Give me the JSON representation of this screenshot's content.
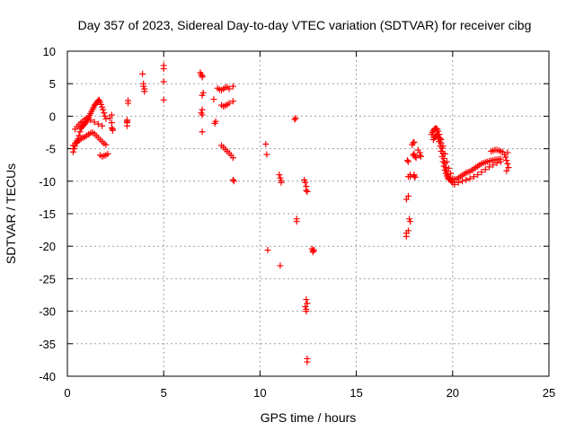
{
  "chart_data": {
    "type": "scatter",
    "title": "Day 357 of 2023, Sidereal Day-to-day VTEC variation (SDTVAR) for receiver cibg",
    "xlabel": "GPS time / hours",
    "ylabel": "SDTVAR / TECUs",
    "xlim": [
      0,
      25
    ],
    "ylim": [
      -40,
      10
    ],
    "xticks": [
      0,
      5,
      10,
      15,
      20,
      25
    ],
    "yticks": [
      -40,
      -35,
      -30,
      -25,
      -20,
      -15,
      -10,
      -5,
      0,
      5,
      10
    ],
    "grid": true,
    "marker": "+",
    "color": "#ff0000",
    "series": [
      {
        "name": "SDTVAR",
        "x": [
          0.3,
          0.35,
          0.4,
          0.45,
          0.5,
          0.55,
          0.6,
          0.65,
          0.7,
          0.75,
          0.8,
          0.85,
          0.9,
          0.95,
          1.0,
          1.05,
          1.1,
          1.15,
          1.2,
          1.25,
          1.3,
          1.35,
          1.4,
          1.45,
          1.5,
          1.55,
          1.6,
          1.65,
          1.7,
          1.75,
          1.8,
          1.85,
          1.9,
          1.95,
          2.0,
          0.3,
          0.4,
          0.5,
          0.6,
          0.7,
          0.8,
          0.9,
          1.0,
          1.1,
          1.2,
          1.3,
          1.4,
          1.5,
          1.6,
          1.7,
          1.8,
          1.9,
          2.0,
          0.4,
          0.5,
          0.6,
          0.7,
          0.8,
          0.9,
          1.0,
          1.2,
          1.4,
          1.6,
          1.8,
          1.7,
          1.8,
          1.9,
          2.0,
          2.1,
          2.2,
          2.3,
          2.3,
          2.3,
          2.35,
          2.35,
          3.1,
          3.1,
          3.1,
          3.15,
          3.15,
          3.1,
          3.9,
          3.95,
          3.95,
          4.0,
          4.0,
          5.0,
          5.0,
          5.0,
          5.0,
          6.9,
          6.95,
          7.0,
          7.0,
          7.05,
          7.0,
          7.0,
          6.95,
          7.0,
          7.0,
          7.6,
          7.7,
          7.65,
          7.8,
          7.9,
          8.0,
          8.1,
          8.2,
          8.3,
          8.4,
          8.0,
          8.1,
          8.2,
          8.3,
          8.4,
          8.0,
          8.1,
          8.2,
          8.3,
          8.4,
          8.5,
          8.6,
          8.6,
          8.6,
          8.6,
          8.65,
          10.3,
          10.35,
          10.4,
          11.0,
          11.05,
          11.1,
          11.1,
          11.05,
          11.8,
          11.85,
          11.9,
          11.9,
          12.3,
          12.35,
          12.4,
          12.4,
          12.45,
          12.4,
          12.45,
          12.35,
          12.4,
          12.4,
          12.45,
          12.45,
          12.7,
          12.75,
          12.75,
          12.8,
          17.6,
          17.6,
          17.7,
          17.7,
          17.65,
          17.7,
          17.6,
          17.7,
          17.8,
          17.8,
          17.75,
          17.8,
          17.9,
          17.95,
          18.0,
          18.0,
          17.95,
          18.05,
          18.1,
          18.0,
          18.05,
          18.0,
          18.2,
          18.3,
          18.3,
          18.35,
          18.9,
          18.95,
          19.0,
          19.05,
          19.1,
          19.15,
          19.2,
          19.25,
          19.3,
          19.35,
          19.4,
          19.45,
          19.5,
          19.55,
          19.6,
          19.65,
          19.7,
          19.75,
          19.8,
          19.85,
          19.9,
          19.95,
          20.0,
          19.0,
          19.05,
          19.1,
          19.15,
          19.2,
          19.25,
          19.3,
          19.35,
          19.4,
          19.45,
          19.5,
          19.55,
          19.6,
          19.65,
          19.7,
          19.75,
          19.8,
          19.2,
          19.3,
          19.4,
          19.5,
          19.6,
          19.7,
          19.8,
          19.9,
          20.0,
          20.1,
          20.2,
          20.3,
          20.4,
          20.5,
          20.6,
          20.7,
          20.8,
          20.9,
          21.0,
          21.1,
          21.2,
          21.3,
          21.4,
          21.5,
          21.6,
          21.7,
          21.8,
          21.9,
          22.0,
          22.1,
          22.2,
          22.3,
          22.4,
          22.5,
          20.1,
          20.3,
          20.5,
          20.7,
          20.9,
          21.1,
          21.3,
          21.5,
          21.7,
          21.9,
          22.1,
          22.3,
          22.5,
          22.0,
          22.1,
          22.2,
          22.3,
          22.4,
          22.5,
          22.6,
          22.7,
          22.75,
          22.8,
          22.85,
          22.9,
          22.8,
          22.85
        ],
        "y": [
          -5.5,
          -5.0,
          -4.6,
          -4.2,
          -3.8,
          -3.5,
          -3.0,
          -2.4,
          -1.9,
          -1.7,
          -1.5,
          -1.3,
          -1.2,
          -1.0,
          -0.8,
          -0.5,
          -0.2,
          0.1,
          0.4,
          0.7,
          1.0,
          1.3,
          1.6,
          1.8,
          2.0,
          2.2,
          2.4,
          2.5,
          2.2,
          1.8,
          1.4,
          1.0,
          0.5,
          0.0,
          -0.4,
          -4.5,
          -4.2,
          -4.0,
          -3.7,
          -3.5,
          -3.3,
          -3.2,
          -3.0,
          -2.8,
          -2.6,
          -2.5,
          -2.7,
          -3.0,
          -3.3,
          -3.6,
          -3.9,
          -4.2,
          -4.4,
          -2.0,
          -1.6,
          -1.3,
          -1.0,
          -0.8,
          -0.5,
          -0.3,
          -0.6,
          -0.9,
          -1.2,
          -1.5,
          -6.0,
          -6.2,
          -6.1,
          -6.0,
          -5.8,
          -0.3,
          0.2,
          -1.0,
          -1.8,
          -2.0,
          -2.2,
          -1.5,
          -1.0,
          -0.6,
          2.0,
          2.4,
          -0.8,
          6.5,
          5.0,
          4.6,
          4.2,
          3.8,
          7.8,
          7.3,
          5.3,
          2.5,
          6.7,
          6.4,
          6.2,
          6.0,
          3.6,
          3.2,
          1.0,
          0.5,
          0.2,
          -2.4,
          2.6,
          -0.8,
          -1.1,
          4.3,
          4.1,
          4.0,
          4.2,
          4.4,
          4.5,
          4.2,
          1.7,
          1.5,
          1.6,
          1.8,
          2.0,
          -4.5,
          -4.8,
          -5.1,
          -5.4,
          -5.7,
          -6.0,
          -6.4,
          4.6,
          2.3,
          -9.8,
          -10.0,
          -4.3,
          -5.9,
          -20.6,
          -9.0,
          -9.5,
          -9.9,
          -10.2,
          -23.0,
          -0.5,
          -0.3,
          -15.8,
          -16.2,
          -9.8,
          -10.2,
          -10.8,
          -11.4,
          -11.6,
          -28.2,
          -28.8,
          -29.3,
          -29.7,
          -30.0,
          -37.3,
          -37.8,
          -20.4,
          -20.7,
          -20.9,
          -20.6,
          -18.5,
          -18.0,
          -17.6,
          -7.0,
          -6.8,
          -12.3,
          -12.8,
          -9.3,
          -9.0,
          -9.3,
          -15.8,
          -16.2,
          -4.4,
          -4.1,
          -4.0,
          -5.8,
          -6.0,
          -6.2,
          -6.4,
          -9.2,
          -9.4,
          -9.0,
          -5.2,
          -5.6,
          -6.0,
          -6.2,
          -2.8,
          -2.5,
          -2.2,
          -2.0,
          -1.9,
          -1.9,
          -2.0,
          -2.3,
          -2.8,
          -3.4,
          -4.1,
          -4.9,
          -5.7,
          -6.5,
          -7.2,
          -7.9,
          -8.5,
          -9.0,
          -9.4,
          -9.7,
          -9.9,
          -10.1,
          -10.2,
          -3.6,
          -3.3,
          -3.1,
          -3.0,
          -3.1,
          -3.4,
          -3.9,
          -4.6,
          -5.4,
          -6.2,
          -7.0,
          -7.7,
          -8.3,
          -8.8,
          -9.2,
          -9.5,
          -9.7,
          -2.3,
          -2.8,
          -3.6,
          -4.6,
          -5.8,
          -7.0,
          -8.0,
          -8.8,
          -9.6,
          -9.7,
          -9.7,
          -9.5,
          -9.3,
          -9.1,
          -8.9,
          -8.7,
          -8.6,
          -8.5,
          -8.3,
          -8.1,
          -7.9,
          -7.7,
          -7.5,
          -7.3,
          -7.2,
          -7.1,
          -7.0,
          -6.9,
          -6.8,
          -6.8,
          -6.7,
          -6.7,
          -6.6,
          -6.6,
          -10.5,
          -10.2,
          -10.0,
          -9.8,
          -9.6,
          -9.3,
          -9.0,
          -8.6,
          -8.2,
          -7.8,
          -7.5,
          -7.2,
          -7.0,
          -5.4,
          -5.3,
          -5.2,
          -5.2,
          -5.3,
          -5.4,
          -5.5,
          -5.9,
          -6.3,
          -6.8,
          -7.3,
          -7.9,
          -8.4,
          -5.6
        ]
      }
    ]
  }
}
